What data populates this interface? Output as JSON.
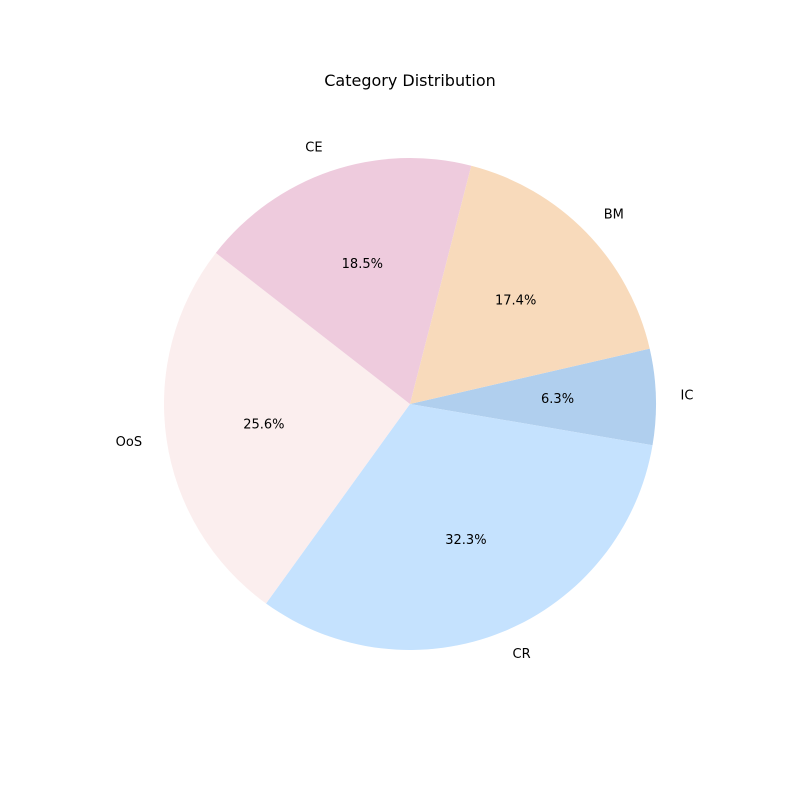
{
  "chart_data": {
    "type": "pie",
    "title": "Category Distribution",
    "labels": [
      "IC",
      "CR",
      "OoS",
      "CE",
      "BM"
    ],
    "values": [
      6.3,
      32.3,
      25.6,
      18.5,
      17.4
    ],
    "percent_labels": [
      "6.3%",
      "32.3%",
      "25.6%",
      "18.5%",
      "17.4%"
    ],
    "colors": [
      "#b0cfee",
      "#c5e2fe",
      "#fbeeee",
      "#eecbdd",
      "#f8dabb"
    ],
    "start_angle_deg": -13,
    "direction": "clockwise",
    "legend": "none"
  }
}
